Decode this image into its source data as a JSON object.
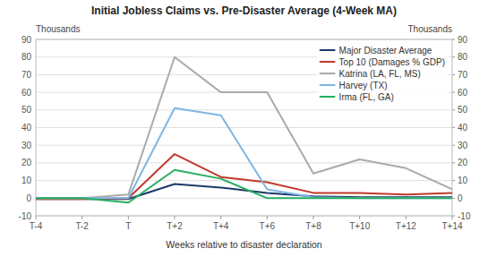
{
  "chart_data": {
    "type": "line",
    "title": "Initial Jobless Claims vs. Pre-Disaster Average (4-Week MA)",
    "xlabel": "Weeks relative to disaster declaration",
    "ylabel": "Thousands",
    "y2label": "Thousands",
    "x": [
      -4,
      -2,
      0,
      2,
      4,
      6,
      8,
      10,
      12,
      14
    ],
    "xlim": [
      -4,
      14
    ],
    "xticks": [
      {
        "value": -4,
        "label": "T-4"
      },
      {
        "value": -2,
        "label": "T-2"
      },
      {
        "value": 0,
        "label": "T"
      },
      {
        "value": 2,
        "label": "T+2"
      },
      {
        "value": 4,
        "label": "T+4"
      },
      {
        "value": 6,
        "label": "T+6"
      },
      {
        "value": 8,
        "label": "T+8"
      },
      {
        "value": 10,
        "label": "T+10"
      },
      {
        "value": 12,
        "label": "T+12"
      },
      {
        "value": 14,
        "label": "T+14"
      }
    ],
    "ylim": [
      -10,
      90
    ],
    "yticks": [
      -10,
      0,
      10,
      20,
      30,
      40,
      50,
      60,
      70,
      80,
      90
    ],
    "y2lim": [
      -10,
      90
    ],
    "y2ticks": [
      -10,
      0,
      10,
      20,
      30,
      40,
      50,
      60,
      70,
      80,
      90
    ],
    "grid": true,
    "legend": "upper right",
    "series": [
      {
        "name": "Major Disaster Average",
        "color": "#1a3a6b",
        "values": [
          -0.5,
          -0.5,
          -0.5,
          8,
          6,
          3,
          1,
          0.5,
          0.5,
          0.5
        ]
      },
      {
        "name": "Top 10 (Damages % GDP)",
        "color": "#c0392b",
        "values": [
          -0.5,
          -0.5,
          0,
          25,
          12,
          9,
          3,
          3,
          2,
          3
        ]
      },
      {
        "name": "Katrina (LA, FL, MS)",
        "color": "#aaaaaa",
        "values": [
          0,
          0,
          2,
          80,
          60,
          60,
          14,
          22,
          17,
          5
        ]
      },
      {
        "name": "Harvey (TX)",
        "color": "#7eb6e4",
        "values": [
          0,
          0,
          0,
          51,
          47,
          5,
          0.5,
          0,
          0,
          0
        ]
      },
      {
        "name": "Irma (FL, GA)",
        "color": "#27ae60",
        "values": [
          0,
          0,
          -2.5,
          16,
          11,
          0,
          0,
          0,
          0,
          0
        ]
      }
    ]
  }
}
